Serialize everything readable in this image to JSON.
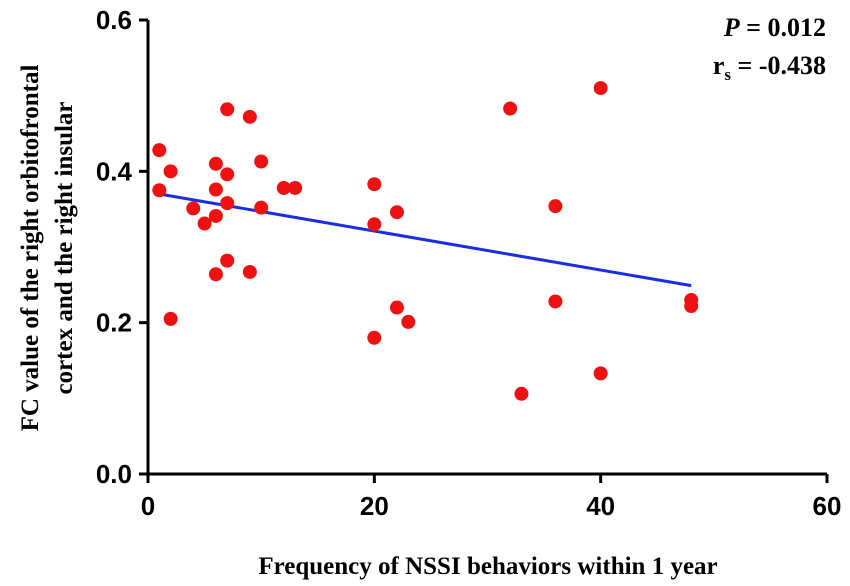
{
  "chart_data": {
    "type": "scatter",
    "xlabel": "Frequency of NSSI behaviors within 1 year",
    "ylabel_line1": "FC value of the  right orbitofrontal",
    "ylabel_line2": "cortex and the  right insular",
    "xlim": [
      0,
      60
    ],
    "ylim": [
      0.0,
      0.6
    ],
    "x_ticks": [
      0,
      20,
      40,
      60
    ],
    "x_tick_labels": [
      "0",
      "20",
      "40",
      "60"
    ],
    "y_ticks": [
      0.0,
      0.2,
      0.4,
      0.6
    ],
    "y_tick_labels": [
      "0.0",
      "0.2",
      "0.4",
      "0.6"
    ],
    "point_color": "#ee1111",
    "line_color": "#1a2ee0",
    "points": [
      {
        "x": 1,
        "y": 0.428
      },
      {
        "x": 1,
        "y": 0.375
      },
      {
        "x": 2,
        "y": 0.4
      },
      {
        "x": 2,
        "y": 0.205
      },
      {
        "x": 4,
        "y": 0.351
      },
      {
        "x": 5,
        "y": 0.331
      },
      {
        "x": 6,
        "y": 0.41
      },
      {
        "x": 6,
        "y": 0.376
      },
      {
        "x": 6,
        "y": 0.341
      },
      {
        "x": 6,
        "y": 0.264
      },
      {
        "x": 7,
        "y": 0.482
      },
      {
        "x": 7,
        "y": 0.396
      },
      {
        "x": 7,
        "y": 0.358
      },
      {
        "x": 7,
        "y": 0.282
      },
      {
        "x": 9,
        "y": 0.472
      },
      {
        "x": 9,
        "y": 0.267
      },
      {
        "x": 10,
        "y": 0.413
      },
      {
        "x": 10,
        "y": 0.352
      },
      {
        "x": 12,
        "y": 0.378
      },
      {
        "x": 13,
        "y": 0.378
      },
      {
        "x": 20,
        "y": 0.383
      },
      {
        "x": 20,
        "y": 0.33
      },
      {
        "x": 20,
        "y": 0.18
      },
      {
        "x": 22,
        "y": 0.346
      },
      {
        "x": 22,
        "y": 0.22
      },
      {
        "x": 23,
        "y": 0.201
      },
      {
        "x": 32,
        "y": 0.483
      },
      {
        "x": 33,
        "y": 0.106
      },
      {
        "x": 36,
        "y": 0.354
      },
      {
        "x": 36,
        "y": 0.228
      },
      {
        "x": 40,
        "y": 0.51
      },
      {
        "x": 40,
        "y": 0.133
      },
      {
        "x": 48,
        "y": 0.23
      },
      {
        "x": 48,
        "y": 0.222
      }
    ],
    "fit_line": {
      "x": [
        1,
        48
      ],
      "y": [
        0.37,
        0.249
      ]
    },
    "annotations": {
      "p_label": "P",
      "p_value": " = 0.012",
      "r_label": "r",
      "r_sub": "s",
      "r_value": " = -0.438"
    }
  }
}
